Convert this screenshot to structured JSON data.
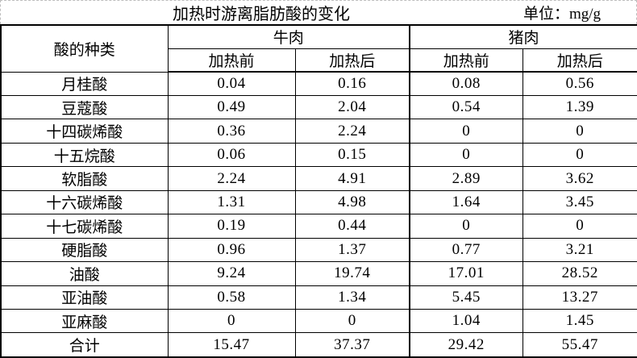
{
  "title_bar": {
    "title": "加热时游离脂肪酸的变化",
    "unit_label": "单位：mg/g"
  },
  "table": {
    "row_header": "酸的种类",
    "col_groups": [
      "牛肉",
      "猪肉"
    ],
    "sub_cols": [
      "加热前",
      "加热后",
      "加热前",
      "加热后"
    ]
  },
  "chart_data": {
    "type": "table",
    "title": "加热时游离脂肪酸的变化",
    "unit": "mg/g",
    "row_header": "酸的种类",
    "columns": [
      "牛肉 加热前",
      "牛肉 加热后",
      "猪肉 加热前",
      "猪肉 加热后"
    ],
    "total_label": "合计",
    "rows": [
      {
        "label": "月桂酸",
        "values": [
          0.04,
          0.16,
          0.08,
          0.56
        ]
      },
      {
        "label": "豆蔻酸",
        "values": [
          0.49,
          2.04,
          0.54,
          1.39
        ]
      },
      {
        "label": "十四碳烯酸",
        "values": [
          0.36,
          2.24,
          0,
          0
        ]
      },
      {
        "label": "十五烷酸",
        "values": [
          0.06,
          0.15,
          0,
          0
        ]
      },
      {
        "label": "软脂酸",
        "values": [
          2.24,
          4.91,
          2.89,
          3.62
        ]
      },
      {
        "label": "十六碳烯酸",
        "values": [
          1.31,
          4.98,
          1.64,
          3.45
        ]
      },
      {
        "label": "十七碳烯酸",
        "values": [
          0.19,
          0.44,
          0,
          0
        ]
      },
      {
        "label": "硬脂酸",
        "values": [
          0.96,
          1.37,
          0.77,
          3.21
        ]
      },
      {
        "label": "油酸",
        "values": [
          9.24,
          19.74,
          17.01,
          28.52
        ]
      },
      {
        "label": "亚油酸",
        "values": [
          0.58,
          1.34,
          5.45,
          13.27
        ]
      },
      {
        "label": "亚麻酸",
        "values": [
          0,
          0,
          1.04,
          1.45
        ]
      },
      {
        "label": "合计",
        "values": [
          15.47,
          37.37,
          29.42,
          55.47
        ]
      }
    ]
  },
  "colors": {
    "background": "#ffffff",
    "text": "#000000",
    "border": "#000000",
    "gridline_dash": "#bdbdbd"
  }
}
